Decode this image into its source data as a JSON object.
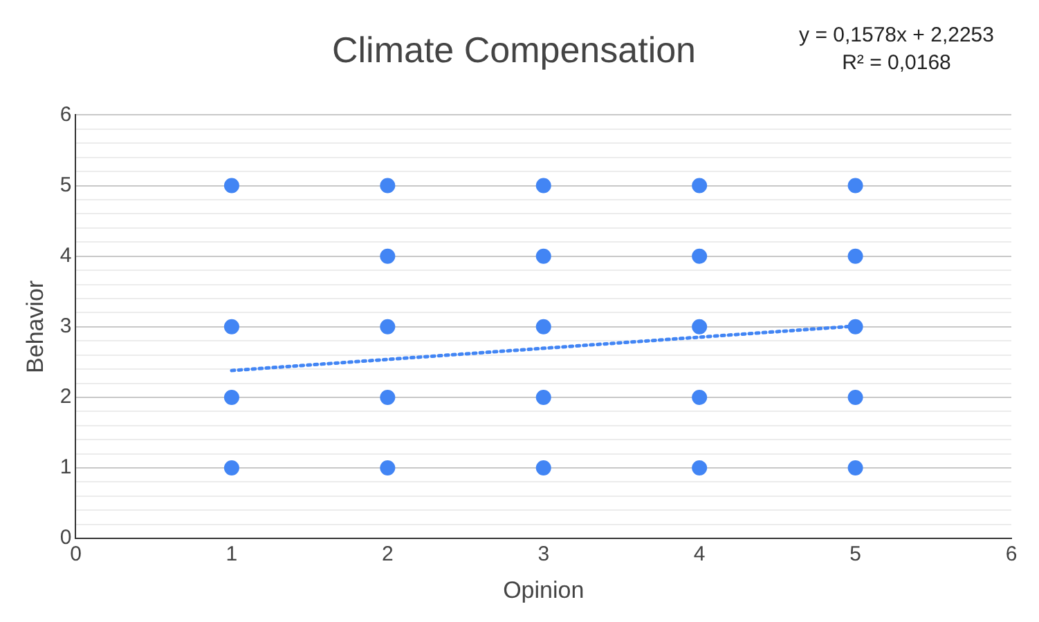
{
  "chart_data": {
    "type": "scatter",
    "title": "Climate Compensation",
    "xlabel": "Opinion",
    "ylabel": "Behavior",
    "annotations": [
      "y = 0,1578x + 2,2253",
      "R² = 0,0168"
    ],
    "series": [
      {
        "type": "scatter",
        "color": "#4285f4",
        "x": [
          1,
          1,
          1,
          1,
          2,
          2,
          2,
          2,
          2,
          3,
          3,
          3,
          3,
          3,
          4,
          4,
          4,
          4,
          4,
          5,
          5,
          5,
          5,
          5
        ],
        "values": [
          5,
          3,
          2,
          1,
          5,
          4,
          3,
          2,
          1,
          5,
          4,
          3,
          2,
          1,
          5,
          4,
          3,
          2,
          1,
          5,
          4,
          3,
          2,
          1
        ],
        "marker": "circle"
      },
      {
        "type": "line",
        "color": "#4285f4",
        "x": [
          1,
          5
        ],
        "values": [
          2.38,
          3.01
        ],
        "line_style": "dotted",
        "marker": "none"
      }
    ],
    "xlim": [
      0,
      6
    ],
    "xticks": [
      0,
      1,
      2,
      3,
      4,
      5,
      6
    ],
    "ylim": [
      0,
      6
    ],
    "yticks": [
      0,
      {
        "value": 0.2,
        "label": null
      },
      {
        "value": 0.4,
        "label": null
      },
      {
        "value": 0.6,
        "label": null
      },
      {
        "value": 0.8,
        "label": null
      },
      1,
      {
        "value": 1.2,
        "label": null
      },
      {
        "value": 1.4,
        "label": null
      },
      {
        "value": 1.6,
        "label": null
      },
      {
        "value": 1.8,
        "label": null
      },
      2,
      {
        "value": 2.2,
        "label": null
      },
      {
        "value": 2.4,
        "label": null
      },
      {
        "value": 2.6,
        "label": null
      },
      {
        "value": 2.8,
        "label": null
      },
      3,
      {
        "value": 3.2,
        "label": null
      },
      {
        "value": 3.4,
        "label": null
      },
      {
        "value": 3.6,
        "label": null
      },
      {
        "value": 3.8,
        "label": null
      },
      4,
      {
        "value": 4.2,
        "label": null
      },
      {
        "value": 4.4,
        "label": null
      },
      {
        "value": 4.6,
        "label": null
      },
      {
        "value": 4.8,
        "label": null
      },
      5,
      {
        "value": 5.2,
        "label": null
      },
      {
        "value": 5.4,
        "label": null
      },
      {
        "value": 5.6,
        "label": null
      },
      {
        "value": 5.8,
        "label": null
      },
      6
    ],
    "grid": "y",
    "legend": false
  }
}
